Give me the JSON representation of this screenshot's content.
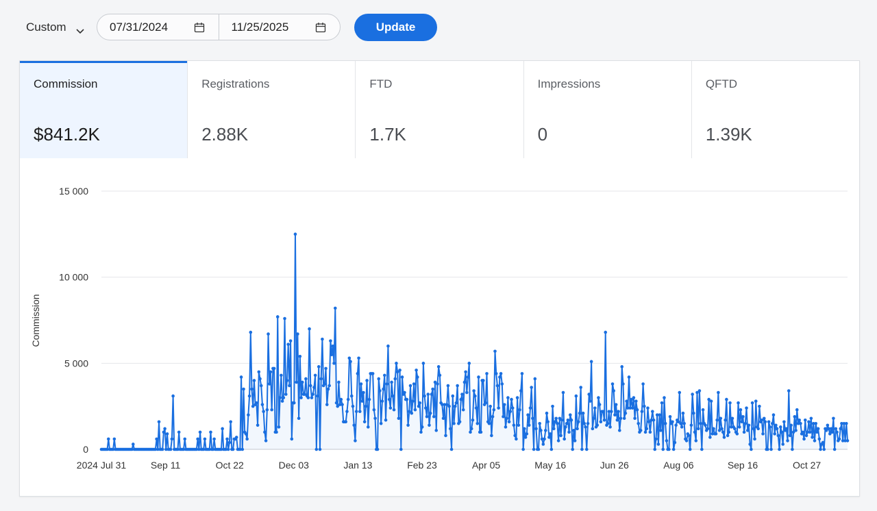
{
  "filter": {
    "range_label": "Custom",
    "start_date": "07/31/2024",
    "end_date": "11/25/2025",
    "update_label": "Update"
  },
  "metrics": [
    {
      "label": "Commission",
      "value": "$841.2K",
      "active": true
    },
    {
      "label": "Registrations",
      "value": "2.88K",
      "active": false
    },
    {
      "label": "FTD",
      "value": "1.7K",
      "active": false
    },
    {
      "label": "Impressions",
      "value": "0",
      "active": false
    },
    {
      "label": "QFTD",
      "value": "1.39K",
      "active": false
    }
  ],
  "colors": {
    "accent": "#1a6fe0",
    "active_tab_bg": "#eef5ff"
  },
  "chart_data": {
    "type": "line",
    "ylabel": "Commission",
    "xlabel": "",
    "ylim": [
      0,
      15000
    ],
    "yticks": [
      "15 000",
      "10 000",
      "5 000",
      "0"
    ],
    "xticks": [
      "2024 Jul 31",
      "Sep 11",
      "Oct 22",
      "Dec 03",
      "Jan 13",
      "Feb 23",
      "Apr 05",
      "May 16",
      "Jun 26",
      "Aug 06",
      "Sep 16",
      "Oct 27"
    ],
    "x_start": "2024-07-31",
    "x_end": "2025-11-25",
    "grid": true,
    "area_fill": true,
    "series": [
      {
        "values": [
          0,
          0,
          0,
          0,
          0,
          0,
          600,
          0,
          0,
          0,
          0,
          600,
          0,
          0,
          0,
          0,
          0,
          0,
          0,
          0,
          0,
          0,
          0,
          0,
          0,
          0,
          0,
          300,
          0,
          0,
          0,
          0,
          0,
          0,
          0,
          0,
          0,
          0,
          0,
          0,
          0,
          0,
          0,
          0,
          0,
          0,
          0,
          600,
          0,
          1600,
          0,
          0,
          0,
          1000,
          1200,
          0,
          900,
          0,
          0,
          0,
          600,
          3100,
          0,
          0,
          0,
          0,
          1000,
          0,
          0,
          0,
          0,
          600,
          0,
          0,
          0,
          0,
          0,
          0,
          0,
          0,
          0,
          0,
          600,
          0,
          1000,
          0,
          0,
          0,
          600,
          0,
          0,
          0,
          0,
          1000,
          0,
          0,
          600,
          0,
          0,
          0,
          0,
          0,
          0,
          1200,
          0,
          0,
          0,
          600,
          0,
          400,
          1600,
          0,
          0,
          600,
          600,
          700,
          0,
          0,
          0,
          4200,
          0,
          3500,
          1000,
          900,
          600,
          2000,
          3100,
          6800,
          3500,
          2500,
          4000,
          2600,
          2700,
          1400,
          4500,
          4100,
          3700,
          2600,
          2200,
          1000,
          500,
          2300,
          6700,
          3800,
          4500,
          2300,
          4700,
          4700,
          1000,
          1000,
          7700,
          1300,
          3000,
          4300,
          2800,
          3000,
          7600,
          3200,
          4000,
          6100,
          3700,
          6300,
          600,
          2700,
          2700,
          12500,
          3900,
          6700,
          1800,
          5400,
          3000,
          3900,
          3200,
          3200,
          4100,
          3100,
          3000,
          7000,
          3700,
          3000,
          3200,
          3600,
          4300,
          0,
          3100,
          4800,
          0,
          4100,
          6400,
          3700,
          3800,
          4700,
          2600,
          3500,
          3700,
          6300,
          5500,
          6000,
          5000,
          8200,
          2700,
          2500,
          3900,
          2600,
          2900,
          2600,
          1600,
          1600,
          1600,
          2200,
          2900,
          5300,
          5100,
          3100,
          2500,
          1400,
          500,
          2200,
          4400,
          5300,
          2200,
          3800,
          2800,
          3300,
          1600,
          2500,
          4000,
          1300,
          2900,
          4400,
          4400,
          4400,
          2300,
          1800,
          0,
          0,
          4100,
          3400,
          1500,
          2800,
          3500,
          4300,
          1700,
          3800,
          6000,
          2900,
          2400,
          3900,
          3100,
          2300,
          4100,
          5000,
          4500,
          1800,
          4600,
          0,
          4200,
          3200,
          3300,
          2900,
          2900,
          1400,
          2200,
          3700,
          2100,
          2800,
          3800,
          2300,
          4600,
          4200,
          2500,
          2700,
          1000,
          1300,
          5000,
          3100,
          2400,
          1900,
          3200,
          1400,
          2100,
          3200,
          3500,
          1900,
          3900,
          1100,
          3800,
          4800,
          4300,
          2700,
          2600,
          1800,
          2600,
          800,
          2600,
          3700,
          2500,
          1200,
          0,
          3100,
          1500,
          2500,
          2700,
          3700,
          1500,
          1600,
          2900,
          3200,
          2300,
          3900,
          4500,
          3300,
          4200,
          5000,
          1000,
          1200,
          1700,
          3400,
          3100,
          2400,
          1500,
          4200,
          1000,
          1000,
          4000,
          4000,
          2600,
          2700,
          4400,
          1600,
          1500,
          2500,
          800,
          1900,
          2300,
          5700,
          4400,
          3700,
          2400,
          4200,
          4400,
          3800,
          1900,
          2600,
          1300,
          1800,
          3000,
          1600,
          2200,
          2900,
          2400,
          1400,
          800,
          600,
          3000,
          1400,
          2300,
          3400,
          4400,
          0,
          1200,
          700,
          900,
          2000,
          1400,
          2400,
          3600,
          1800,
          0,
          4100,
          1200,
          0,
          0,
          1500,
          1100,
          600,
          300,
          600,
          1100,
          2100,
          1600,
          700,
          900,
          0,
          2500,
          1200,
          1600,
          1800,
          1500,
          500,
          1800,
          800,
          1700,
          3300,
          600,
          1300,
          1500,
          1700,
          1000,
          2000,
          1700,
          0,
          1100,
          500,
          3100,
          1200,
          1600,
          2100,
          3600,
          0,
          2100,
          1500,
          1300,
          0,
          1500,
          3200,
          2800,
          5100,
          1200,
          1800,
          2400,
          1300,
          1400,
          3000,
          2600,
          1600,
          2200,
          2200,
          1700,
          6800,
          1400,
          1500,
          2200,
          1300,
          2200,
          3800,
          3400,
          2000,
          2600,
          1700,
          2200,
          1100,
          1800,
          4800,
          3800,
          1800,
          2100,
          2800,
          2400,
          4200,
          2400,
          2900,
          2400,
          3000,
          1800,
          2800,
          2300,
          1500,
          1000,
          1100,
          2200,
          3800,
          2500,
          1000,
          1200,
          2400,
          1600,
          1000,
          1700,
          2200,
          1700,
          0,
          600,
          2000,
          300,
          2000,
          1100,
          2700,
          0,
          3000,
          1500,
          500,
          0,
          0,
          1900,
          1500,
          1600,
          0,
          400,
          1400,
          1700,
          1600,
          3300,
          1500,
          1300,
          2100,
          1500,
          600,
          500,
          900,
          800,
          0,
          1400,
          3200,
          2100,
          1000,
          500,
          3300,
          1200,
          3400,
          1500,
          0,
          2300,
          1500,
          1400,
          1100,
          1200,
          2900,
          700,
          2800,
          900,
          1200,
          900,
          900,
          1700,
          3300,
          1100,
          1800,
          1200,
          1000,
          700,
          1700,
          2900,
          800,
          1000,
          2700,
          1300,
          1800,
          1300,
          1200,
          1000,
          900,
          2700,
          1300,
          2300,
          1600,
          1900,
          1000,
          1500,
          2400,
          1100,
          1400,
          300,
          0,
          2700,
          1200,
          600,
          2800,
          1300,
          1200,
          2500,
          1600,
          1700,
          900,
          1800,
          1600,
          0,
          0,
          1600,
          1300,
          0,
          1500,
          2000,
          900,
          1400,
          1200,
          800,
          0,
          1300,
          1000,
          300,
          1600,
          1100,
          1200,
          500,
          3400,
          800,
          1400,
          0,
          1000,
          1900,
          1100,
          2300,
          1500,
          1700,
          1500,
          900,
          1000,
          600,
          1700,
          800,
          1000,
          1600,
          1000,
          1800,
          700,
          1500,
          500,
          1500,
          1000,
          1200,
          600,
          0,
          300,
          400,
          0,
          1200,
          1100,
          1400,
          1200,
          900,
          1200,
          1000,
          1800,
          0,
          1200,
          1000,
          500,
          600,
          1200,
          1500,
          500,
          1500,
          500,
          1500,
          500
        ]
      }
    ]
  }
}
